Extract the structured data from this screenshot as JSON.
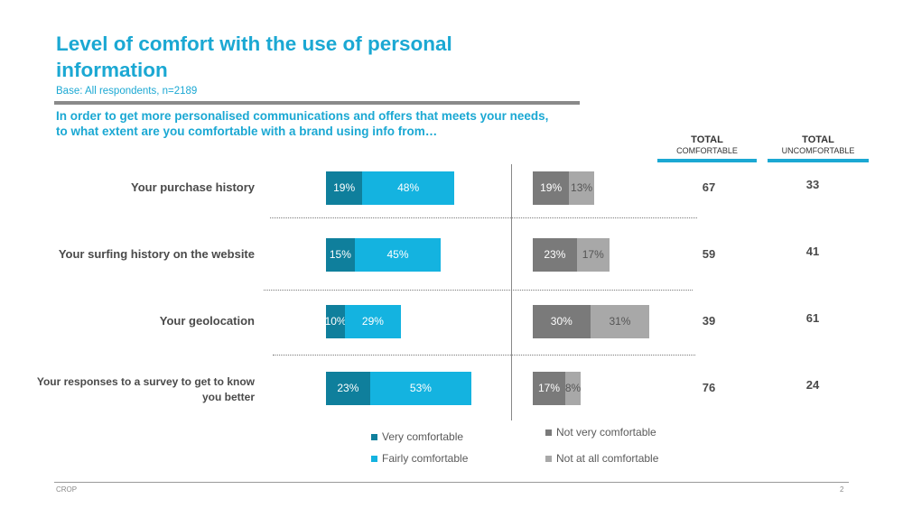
{
  "slide": {
    "title": "Level of comfort with the use of personal information",
    "base": "Base: All respondents,  n=2189",
    "question": "In order to get more personalised communications and offers that meets your needs, to what extent are you comfortable with a brand using info from…",
    "footer_left": "CROP",
    "page_number": "2"
  },
  "columns": {
    "comfortable_l1": "TOTAL",
    "comfortable_l2": "COMFORTABLE",
    "uncomfortable_l1": "TOTAL",
    "uncomfortable_l2": "UNCOMFORTABLE"
  },
  "chart_data": {
    "type": "bar",
    "orientation": "horizontal",
    "stacked": true,
    "categories": [
      "Your purchase history",
      "Your surfing history on the website",
      "Your geolocation",
      "Your responses to a survey to get to know you better"
    ],
    "series": [
      {
        "name": "Very comfortable",
        "values": [
          19,
          15,
          10,
          23
        ],
        "color": "#0f7f9c"
      },
      {
        "name": "Fairly comfortable",
        "values": [
          48,
          45,
          29,
          53
        ],
        "color": "#14b3e0"
      },
      {
        "name": "Not very comfortable",
        "values": [
          19,
          23,
          30,
          17
        ],
        "color": "#7a7a7a"
      },
      {
        "name": "Not at all comfortable",
        "values": [
          13,
          17,
          31,
          8
        ],
        "color": "#a8a8a8"
      }
    ],
    "total_comfortable": [
      67,
      59,
      39,
      76
    ],
    "total_uncomfortable": [
      33,
      41,
      61,
      24
    ],
    "value_suffix": "%",
    "legend": [
      {
        "label": "Very comfortable",
        "color": "#0f7f9c"
      },
      {
        "label": "Fairly comfortable",
        "color": "#14b3e0"
      },
      {
        "label": "Not very comfortable",
        "color": "#7a7a7a"
      },
      {
        "label": "Not at all comfortable",
        "color": "#a8a8a8"
      }
    ],
    "legend_position": "bottom"
  }
}
